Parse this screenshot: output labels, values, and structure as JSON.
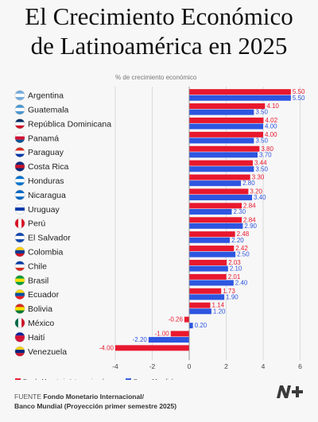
{
  "title": {
    "line1": "El Crecimiento Económico",
    "line2": "de Latinoamérica en 2025"
  },
  "chart_data": {
    "type": "bar",
    "orientation": "horizontal",
    "subtitle": "% de crecimiento económico",
    "categories": [
      "Argentina",
      "Guatemala",
      "República Dominicana",
      "Panamá",
      "Paraguay",
      "Costa Rica",
      "Honduras",
      "Nicaragua",
      "Uruguay",
      "Perú",
      "El Salvador",
      "Colombia",
      "Chile",
      "Brasil",
      "Ecuador",
      "Bolivia",
      "México",
      "Haití",
      "Venezuela"
    ],
    "series": [
      {
        "name": "Fondo Monetario Internacional",
        "color": "#e8182e",
        "values": [
          5.5,
          4.1,
          4.02,
          4.0,
          3.8,
          3.44,
          3.3,
          3.2,
          2.84,
          2.84,
          2.48,
          2.42,
          2.03,
          2.01,
          1.73,
          1.14,
          -0.26,
          -1.0,
          -4.0
        ]
      },
      {
        "name": "Banco Mundial",
        "color": "#2d55e0",
        "values": [
          5.5,
          3.5,
          4.0,
          3.5,
          3.7,
          3.5,
          2.8,
          3.4,
          2.3,
          2.9,
          2.2,
          2.5,
          2.1,
          2.4,
          1.9,
          1.2,
          0.2,
          -2.2,
          null
        ]
      }
    ],
    "xlim": [
      -4,
      6
    ],
    "xticks": [
      -4,
      -2,
      0,
      2,
      4,
      6
    ],
    "grid": true,
    "legend": "bottom-left"
  },
  "footer": {
    "label": "FUENTE",
    "line1": "Fondo Monetario Internacional/",
    "line2": "Banco Mundial (Proyección primer semestre 2025)"
  },
  "logo_text": "N+"
}
